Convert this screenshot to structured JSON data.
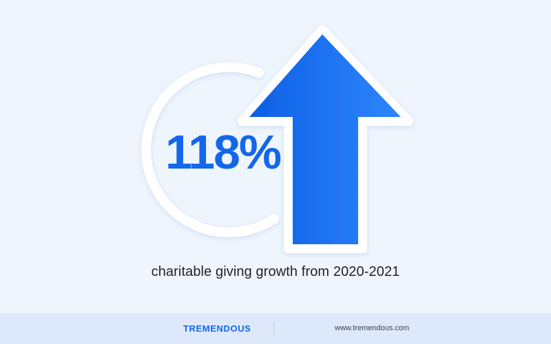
{
  "stat": {
    "value": "118%",
    "caption": "charitable giving growth from 2020-2021"
  },
  "footer": {
    "brand": "TREMENDOUS",
    "website": "www.tremendous.com"
  },
  "colors": {
    "background": "#eff5fd",
    "footer_background": "#dde9fb",
    "accent_blue": "#1467ea",
    "arrow_gradient_start": "#0d5fe6",
    "arrow_gradient_end": "#2e86fb",
    "caption_text": "#1f1f2b"
  },
  "icons": {
    "arrow": "up-arrow-icon",
    "ring": "circle-ring-decoration"
  }
}
